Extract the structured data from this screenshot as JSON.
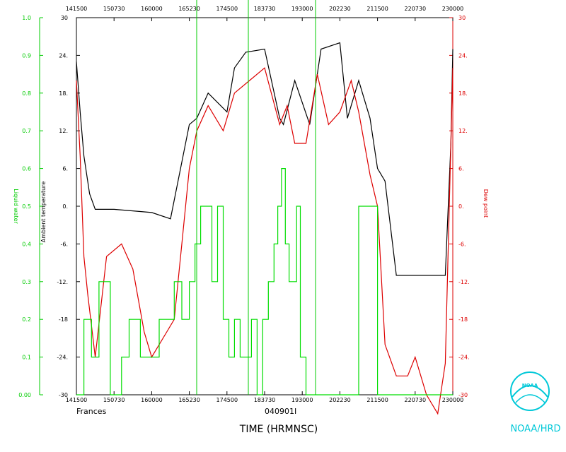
{
  "chart_data": {
    "type": "line",
    "storm": "Frances",
    "flight_id": "040901I",
    "xlabel": "TIME (HRMNSC)",
    "x_ticks": [
      "141500",
      "150730",
      "160000",
      "165230",
      "174500",
      "183730",
      "193000",
      "202230",
      "211500",
      "220730",
      "230000"
    ],
    "ylabel_left_outer": "Liquid water",
    "ylabel_left_inner": "Ambient temperature",
    "ylabel_right": "Dew point",
    "liquid_water_ticks": [
      "0.00",
      "0.1",
      "0.2",
      "0.3",
      "0.4",
      "0.5",
      "0.6",
      "0.7",
      "0.8",
      "0.9",
      "1.0"
    ],
    "ambient_ticks": [
      "-30",
      "-24.",
      "-18",
      "-12.",
      "-6.",
      "0.",
      "6.",
      "12.",
      "18.",
      "24.",
      "30"
    ],
    "dewpoint_ticks": [
      "-30",
      "-24.",
      "-18",
      "-12.",
      "-6.",
      "0.",
      "6.",
      "12.",
      "18.",
      "24.",
      "30"
    ],
    "ylim_temperature": [
      -30,
      30
    ],
    "ylim_liquid_water": [
      0,
      1
    ],
    "series": [
      {
        "name": "Ambient temperature",
        "color": "#000000",
        "x_index": [
          0,
          0.1,
          0.2,
          0.35,
          0.5,
          1.0,
          2.0,
          2.5,
          3.0,
          3.2,
          3.5,
          4.0,
          4.2,
          4.5,
          5.0,
          5.4,
          5.5,
          5.8,
          6.2,
          6.5,
          7.0,
          7.2,
          7.5,
          7.6,
          7.8,
          8.0,
          8.2,
          8.5,
          9.0,
          9.5,
          9.8,
          9.95,
          10.0
        ],
        "values": [
          23,
          15,
          8,
          2,
          -0.5,
          -0.5,
          -1,
          -2,
          13,
          14,
          18,
          15,
          22,
          24.5,
          25,
          14,
          13,
          20,
          13,
          25,
          26,
          14,
          20,
          18,
          14,
          6,
          4,
          -11,
          -11,
          -11,
          -11,
          10,
          25
        ]
      },
      {
        "name": "Dew point",
        "color": "#dd0000",
        "x_index": [
          0,
          0.1,
          0.2,
          0.3,
          0.5,
          0.8,
          1.2,
          1.5,
          1.8,
          2.0,
          2.4,
          2.6,
          2.8,
          3.0,
          3.2,
          3.5,
          3.9,
          4.2,
          4.6,
          5.0,
          5.4,
          5.6,
          5.8,
          6.1,
          6.4,
          6.7,
          7.0,
          7.3,
          7.5,
          7.8,
          8.0,
          8.2,
          8.5,
          8.8,
          9.0,
          9.3,
          9.6,
          9.8,
          10.0
        ],
        "values": [
          20,
          8,
          -8,
          -14,
          -24,
          -8,
          -6,
          -10,
          -20,
          -24,
          -20,
          -18,
          -6,
          6,
          12,
          16,
          12,
          18,
          20,
          22,
          13,
          16,
          10,
          10,
          21,
          13,
          15,
          20,
          15,
          5,
          0,
          -22,
          -27,
          -27,
          -24,
          -30,
          -33,
          -25,
          22
        ]
      },
      {
        "name": "Liquid water",
        "color": "#00dd00",
        "x_index": [
          0,
          0.2,
          0.4,
          0.6,
          0.9,
          1.2,
          1.4,
          1.7,
          2.0,
          2.2,
          2.4,
          2.6,
          2.8,
          3.0,
          3.15,
          3.3,
          3.45,
          3.6,
          3.75,
          3.9,
          4.05,
          4.2,
          4.35,
          4.5,
          4.65,
          4.8,
          4.95,
          5.1,
          5.25,
          5.35,
          5.45,
          5.55,
          5.65,
          5.75,
          5.85,
          5.95,
          6.1,
          6.5,
          7.0,
          7.5,
          8.0,
          8.5,
          9.0,
          10.0
        ],
        "values": [
          0,
          0.2,
          0.1,
          0.3,
          0,
          0.1,
          0.2,
          0.1,
          0.1,
          0.2,
          0.2,
          0.3,
          0.2,
          0.3,
          0.4,
          0.5,
          0.5,
          0.3,
          0.5,
          0.2,
          0.1,
          0.2,
          0.1,
          0.1,
          0.2,
          0,
          0.2,
          0.3,
          0.4,
          0.5,
          0.6,
          0.4,
          0.3,
          0.3,
          0.5,
          0.1,
          0,
          0,
          0,
          0.5,
          0,
          0,
          0,
          0
        ]
      }
    ]
  },
  "logo": {
    "text": "NOAA/HRD",
    "emblem_text": "NOAA"
  }
}
